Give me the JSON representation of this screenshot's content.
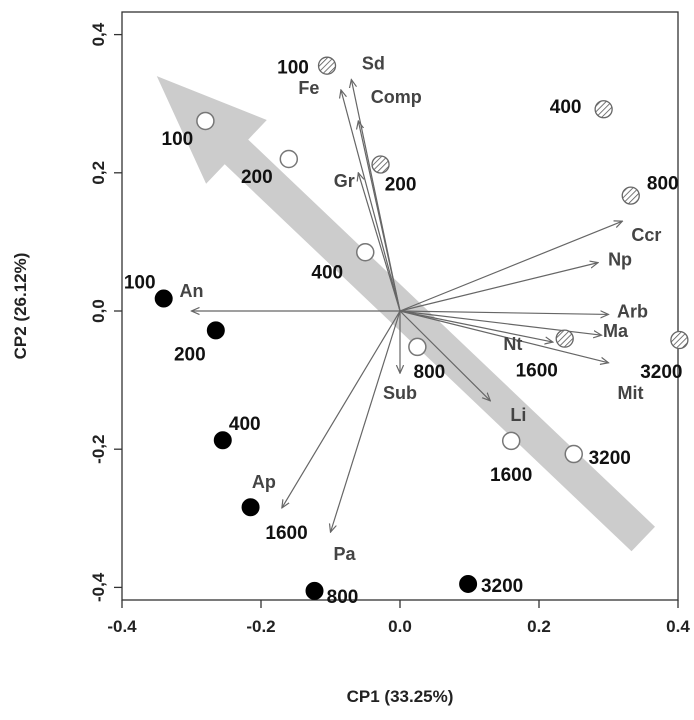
{
  "chart_data": {
    "type": "scatter",
    "title": "",
    "xlabel": "CP1 (33.25%)",
    "ylabel": "CP2 (26.12%)",
    "xlim": [
      -0.4,
      0.4
    ],
    "ylim": [
      -0.4,
      0.4
    ],
    "x_ticks": [
      "-0.4",
      "-0.2",
      "0.0",
      "0.2",
      "0.4"
    ],
    "y_ticks": [
      "-0,4",
      "-0,2",
      "0,0",
      "0,2",
      "0,4"
    ],
    "grid": false,
    "colors": {
      "open": "#ffffff",
      "filled": "#000000",
      "hatched": "#bbbbbb",
      "vector": "#666666",
      "trend_arrow": "#cccccc"
    },
    "series": [
      {
        "marker": "open-circle",
        "points": [
          {
            "x": -0.28,
            "y": 0.275,
            "label": "100"
          },
          {
            "x": -0.16,
            "y": 0.22,
            "label": "200"
          },
          {
            "x": -0.05,
            "y": 0.085,
            "label": "400"
          },
          {
            "x": 0.025,
            "y": -0.052,
            "label": "800"
          },
          {
            "x": 0.16,
            "y": -0.188,
            "label": "1600"
          },
          {
            "x": 0.25,
            "y": -0.207,
            "label": "3200"
          }
        ]
      },
      {
        "marker": "filled-circle",
        "points": [
          {
            "x": -0.34,
            "y": 0.018,
            "label": "100"
          },
          {
            "x": -0.265,
            "y": -0.028,
            "label": "200"
          },
          {
            "x": -0.255,
            "y": -0.187,
            "label": "400"
          },
          {
            "x": -0.215,
            "y": -0.284,
            "label": "1600"
          },
          {
            "x": -0.123,
            "y": -0.405,
            "label": "800"
          },
          {
            "x": 0.098,
            "y": -0.395,
            "label": "3200"
          }
        ]
      },
      {
        "marker": "hatched-circle",
        "points": [
          {
            "x": -0.105,
            "y": 0.355,
            "label": "100"
          },
          {
            "x": -0.028,
            "y": 0.212,
            "label": "200"
          },
          {
            "x": 0.293,
            "y": 0.292,
            "label": "400"
          },
          {
            "x": 0.332,
            "y": 0.167,
            "label": "800"
          },
          {
            "x": 0.237,
            "y": -0.04,
            "label": "1600"
          },
          {
            "x": 0.402,
            "y": -0.042,
            "label": "3200"
          }
        ]
      }
    ],
    "vectors": [
      {
        "name": "Sd",
        "x": -0.07,
        "y": 0.335
      },
      {
        "name": "Fe",
        "x": -0.085,
        "y": 0.32
      },
      {
        "name": "Comp",
        "x": -0.06,
        "y": 0.275
      },
      {
        "name": "Gr",
        "x": -0.06,
        "y": 0.2
      },
      {
        "name": "Ccr",
        "x": 0.32,
        "y": 0.13
      },
      {
        "name": "Np",
        "x": 0.285,
        "y": 0.07
      },
      {
        "name": "Arb",
        "x": 0.3,
        "y": -0.005
      },
      {
        "name": "Ma",
        "x": 0.29,
        "y": -0.035
      },
      {
        "name": "Mit",
        "x": 0.3,
        "y": -0.075
      },
      {
        "name": "Nt",
        "x": 0.22,
        "y": -0.045
      },
      {
        "name": "Li",
        "x": 0.13,
        "y": -0.13
      },
      {
        "name": "Sub",
        "x": 0.0,
        "y": -0.09
      },
      {
        "name": "An",
        "x": -0.3,
        "y": 0.0
      },
      {
        "name": "Ap",
        "x": -0.17,
        "y": -0.285
      },
      {
        "name": "Pa",
        "x": -0.1,
        "y": -0.32
      }
    ],
    "trend_arrow": {
      "from": {
        "x": 0.35,
        "y": -0.33
      },
      "to": {
        "x": -0.35,
        "y": 0.34
      }
    }
  }
}
